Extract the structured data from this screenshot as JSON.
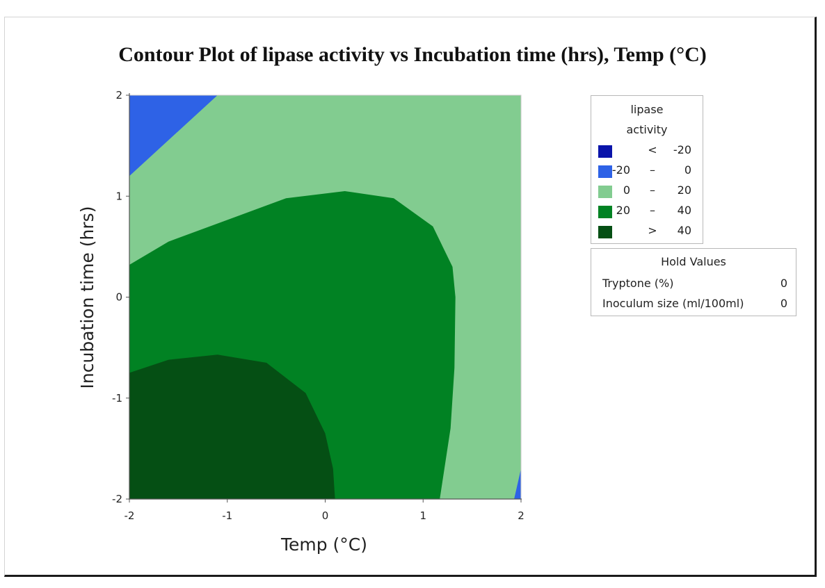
{
  "chart_data": {
    "type": "contour",
    "title": "Contour Plot of lipase activity vs Incubation time (hrs), Temp (°C)",
    "xlabel": "Temp (°C)",
    "ylabel": "Incubation time (hrs)",
    "xlim": [
      -2,
      2
    ],
    "ylim": [
      -2,
      2
    ],
    "x_ticks": [
      "-2",
      "-1",
      "0",
      "1",
      "2"
    ],
    "y_ticks": [
      "2",
      "1",
      "0",
      "-1",
      "-2"
    ],
    "legend": {
      "title_line1": "lipase",
      "title_line2": "activity",
      "levels": [
        {
          "lo": "",
          "op": "<",
          "hi": "-20",
          "color": "#0a14aa"
        },
        {
          "lo": "-20",
          "op": "–",
          "hi": "0",
          "color": "#2e62e6"
        },
        {
          "lo": "0",
          "op": "–",
          "hi": "20",
          "color": "#82cc90"
        },
        {
          "lo": "20",
          "op": "–",
          "hi": "40",
          "color": "#018223"
        },
        {
          "lo": "",
          "op": ">",
          "hi": "40",
          "color": "#054f14"
        }
      ]
    },
    "hold_values": {
      "title": "Hold Values",
      "rows": [
        {
          "label": "Tryptone (%)",
          "value": "0"
        },
        {
          "label": "Inoculum size (ml/100ml)",
          "value": "0"
        }
      ]
    },
    "contours": [
      {
        "level": 0,
        "side": "top-left",
        "points": [
          [
            -2.0,
            1.2
          ],
          [
            -1.1,
            2.0
          ]
        ]
      },
      {
        "level": 0,
        "side": "bottom-right",
        "points": [
          [
            1.93,
            -2.0
          ],
          [
            2.0,
            -1.7
          ]
        ]
      },
      {
        "level": 20,
        "points": [
          [
            -2.0,
            0.32
          ],
          [
            -1.6,
            0.55
          ],
          [
            -0.9,
            0.8
          ],
          [
            -0.4,
            0.98
          ],
          [
            0.2,
            1.05
          ],
          [
            0.7,
            0.98
          ],
          [
            1.1,
            0.7
          ],
          [
            1.3,
            0.3
          ],
          [
            1.33,
            0.0
          ],
          [
            1.32,
            -0.7
          ],
          [
            1.28,
            -1.3
          ],
          [
            1.17,
            -2.0
          ]
        ]
      },
      {
        "level": 40,
        "points": [
          [
            -2.0,
            -0.75
          ],
          [
            -1.6,
            -0.62
          ],
          [
            -1.1,
            -0.57
          ],
          [
            -0.6,
            -0.65
          ],
          [
            -0.2,
            -0.95
          ],
          [
            0.0,
            -1.35
          ],
          [
            0.08,
            -1.7
          ],
          [
            0.1,
            -2.0
          ]
        ]
      }
    ]
  }
}
